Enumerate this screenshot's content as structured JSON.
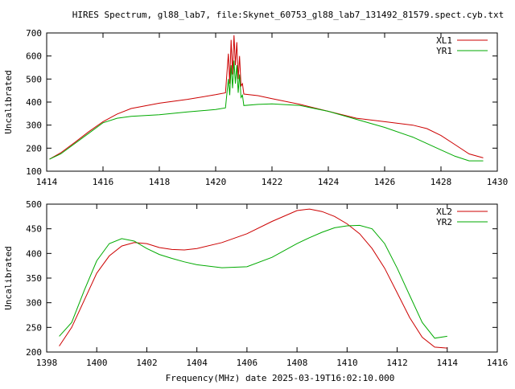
{
  "chart_data": [
    {
      "type": "line",
      "title": "HIRES Spectrum, gl88_lab7, file:Skynet_60753_gl88_lab7_131492_81579.spect.cyb.txt",
      "xlabel": "",
      "ylabel": "Uncalibrated",
      "xlim": [
        1414,
        1430
      ],
      "ylim": [
        100,
        700
      ],
      "xticks": [
        1414,
        1416,
        1418,
        1420,
        1422,
        1424,
        1426,
        1428,
        1430
      ],
      "yticks": [
        100,
        200,
        300,
        400,
        500,
        600,
        700
      ],
      "legend_position": "top-right",
      "grid": false,
      "series": [
        {
          "name": "XL1",
          "color": "#cc0000",
          "x": [
            1414.1,
            1414.5,
            1415,
            1415.5,
            1416,
            1416.5,
            1417,
            1418,
            1419,
            1420,
            1420.35,
            1420.45,
            1420.5,
            1420.55,
            1420.6,
            1420.65,
            1420.7,
            1420.75,
            1420.8,
            1420.85,
            1420.9,
            1420.95,
            1421,
            1421.5,
            1422,
            1423,
            1424,
            1425,
            1426,
            1427,
            1427.5,
            1428,
            1428.5,
            1429,
            1429.5
          ],
          "y": [
            152,
            180,
            225,
            272,
            315,
            348,
            372,
            395,
            412,
            432,
            440,
            610,
            480,
            670,
            520,
            690,
            560,
            660,
            500,
            600,
            470,
            480,
            435,
            428,
            415,
            390,
            360,
            330,
            315,
            300,
            285,
            255,
            215,
            175,
            158
          ]
        },
        {
          "name": "YR1",
          "color": "#00aa00",
          "x": [
            1414.1,
            1414.5,
            1415,
            1415.5,
            1416,
            1416.5,
            1417,
            1418,
            1419,
            1420,
            1420.35,
            1420.45,
            1420.5,
            1420.55,
            1420.6,
            1420.65,
            1420.7,
            1420.75,
            1420.8,
            1420.85,
            1420.9,
            1420.95,
            1421,
            1421.5,
            1422,
            1423,
            1424,
            1425,
            1426,
            1427,
            1427.5,
            1428,
            1428.5,
            1429,
            1429.5
          ],
          "y": [
            152,
            175,
            220,
            265,
            310,
            330,
            338,
            345,
            357,
            368,
            375,
            500,
            430,
            560,
            460,
            580,
            480,
            560,
            440,
            520,
            420,
            430,
            385,
            390,
            392,
            385,
            360,
            325,
            290,
            248,
            220,
            192,
            165,
            145,
            145
          ]
        }
      ]
    },
    {
      "type": "line",
      "title": "",
      "xlabel": "Frequency(MHz) date 2025-03-19T16:02:10.000",
      "ylabel": "Uncalibrated",
      "xlim": [
        1398,
        1416
      ],
      "ylim": [
        200,
        500
      ],
      "xticks": [
        1398,
        1400,
        1402,
        1404,
        1406,
        1408,
        1410,
        1412,
        1414,
        1416
      ],
      "yticks": [
        200,
        250,
        300,
        350,
        400,
        450,
        500
      ],
      "legend_position": "top-right",
      "grid": false,
      "series": [
        {
          "name": "XL2",
          "color": "#cc0000",
          "x": [
            1398.5,
            1399,
            1399.5,
            1400,
            1400.5,
            1401,
            1401.5,
            1402,
            1402.5,
            1403,
            1403.5,
            1404,
            1405,
            1406,
            1407,
            1408,
            1408.5,
            1409,
            1409.5,
            1410,
            1410.5,
            1411,
            1411.5,
            1412,
            1412.5,
            1413,
            1413.5,
            1414
          ],
          "y": [
            212,
            250,
            305,
            360,
            395,
            415,
            422,
            420,
            412,
            408,
            407,
            410,
            422,
            440,
            465,
            487,
            490,
            485,
            475,
            460,
            440,
            410,
            370,
            320,
            270,
            230,
            210,
            208
          ]
        },
        {
          "name": "YR2",
          "color": "#00aa00",
          "x": [
            1398.5,
            1399,
            1399.5,
            1400,
            1400.5,
            1401,
            1401.5,
            1402,
            1402.5,
            1403,
            1403.5,
            1404,
            1405,
            1406,
            1407,
            1408,
            1408.5,
            1409,
            1409.5,
            1410,
            1410.5,
            1411,
            1411.5,
            1412,
            1412.5,
            1413,
            1413.5,
            1414
          ],
          "y": [
            232,
            260,
            325,
            385,
            420,
            430,
            425,
            410,
            398,
            390,
            383,
            377,
            371,
            373,
            392,
            420,
            432,
            443,
            452,
            456,
            457,
            450,
            420,
            370,
            315,
            260,
            228,
            232
          ]
        }
      ]
    }
  ]
}
